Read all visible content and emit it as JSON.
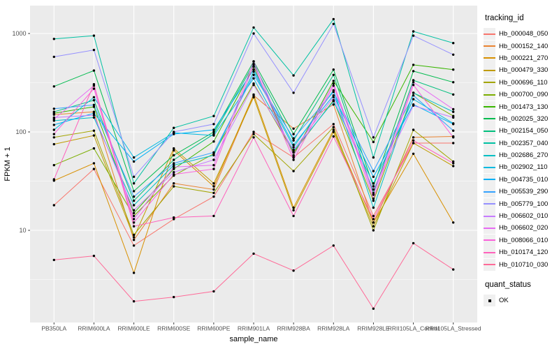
{
  "style": {
    "panel_bg": "#EBEBEB",
    "grid_color": "#FFFFFF",
    "point_color": "#000000",
    "axis_text_color": "#4D4D4D",
    "axis_title_color": "#000000",
    "tick_mark_color": "#333333",
    "legend_key_bg": "#F0F0F0"
  },
  "legend": {
    "title": "tracking_id"
  },
  "legend2": {
    "title": "quant_status",
    "items": [
      {
        "label": "OK",
        "marker": "black-square"
      }
    ]
  },
  "chart_data": {
    "type": "line",
    "title": "",
    "xlabel": "sample_name",
    "ylabel": "FPKM + 1",
    "y_scale": "log10",
    "y_ticks": [
      1000,
      100,
      10
    ],
    "y_minor_gridlines": [
      316.2,
      31.62,
      3.162
    ],
    "ylim": [
      1.16,
      1925
    ],
    "grid": "white major+minor horizontal, white vertical at each category, on gray panel",
    "legend_position": "right",
    "point_marker": "small black dot on every vertex",
    "categories": [
      "PB350LA",
      "RRIM600LA",
      "RRIM600LE",
      "RRIM600SE",
      "RRIM600PE",
      "RRIM901LA",
      "RRIM928BA",
      "RRIM928LA",
      "RRIM928LE",
      "RRII105LA_Control",
      "RRII105LA_Stressed"
    ],
    "series": [
      {
        "name": "Hb_000048_050",
        "color": "#F8766D",
        "values": [
          18,
          42,
          7,
          13,
          22,
          100,
          55,
          120,
          14,
          77,
          77
        ]
      },
      {
        "name": "Hb_000152_140",
        "color": "#EA8331",
        "values": [
          150,
          160,
          8,
          30,
          26,
          235,
          108,
          190,
          12,
          88,
          90
        ]
      },
      {
        "name": "Hb_000221_270",
        "color": "#D89000",
        "values": [
          32,
          48,
          3.7,
          65,
          28,
          240,
          17,
          105,
          12,
          60,
          12
        ]
      },
      {
        "name": "Hb_000479_330",
        "color": "#C09B00",
        "values": [
          75,
          92,
          8.5,
          68,
          30,
          225,
          16,
          100,
          11,
          77,
          45
        ]
      },
      {
        "name": "Hb_000696_110",
        "color": "#A3A500",
        "values": [
          88,
          103,
          9,
          28,
          24,
          95,
          40,
          112,
          10,
          105,
          50
        ]
      },
      {
        "name": "Hb_000700_090",
        "color": "#7CAE00",
        "values": [
          46,
          68,
          14,
          36,
          60,
          310,
          62,
          210,
          20,
          250,
          145
        ]
      },
      {
        "name": "Hb_001473_130",
        "color": "#39B600",
        "values": [
          155,
          180,
          15,
          42,
          80,
          460,
          58,
          330,
          79,
          480,
          430
        ]
      },
      {
        "name": "Hb_002025_320",
        "color": "#00BB4E",
        "values": [
          290,
          420,
          25,
          58,
          100,
          520,
          95,
          430,
          28,
          415,
          320
        ]
      },
      {
        "name": "Hb_002154_050",
        "color": "#00BF7D",
        "values": [
          160,
          210,
          20,
          52,
          95,
          490,
          82,
          380,
          24,
          335,
          240
        ]
      },
      {
        "name": "Hb_002357_040",
        "color": "#00C1A3",
        "values": [
          880,
          950,
          30,
          110,
          145,
          1150,
          375,
          1400,
          55,
          1050,
          800
        ]
      },
      {
        "name": "Hb_002686_270",
        "color": "#00BFC4",
        "values": [
          130,
          140,
          18,
          46,
          58,
          410,
          70,
          265,
          17,
          250,
          160
        ]
      },
      {
        "name": "Hb_002902_110",
        "color": "#00BAE0",
        "values": [
          105,
          225,
          55,
          98,
          92,
          350,
          64,
          205,
          30,
          215,
          122
        ]
      },
      {
        "name": "Hb_004735_010",
        "color": "#00B0F6",
        "values": [
          118,
          155,
          50,
          95,
          105,
          430,
          74,
          235,
          35,
          190,
          120
        ]
      },
      {
        "name": "Hb_005539_290",
        "color": "#35A2FF",
        "values": [
          172,
          188,
          22,
          48,
          62,
          380,
          86,
          255,
          40,
          235,
          103
        ]
      },
      {
        "name": "Hb_005779_100",
        "color": "#9590FF",
        "values": [
          580,
          680,
          35,
          100,
          120,
          1000,
          250,
          1250,
          88,
          950,
          610
        ]
      },
      {
        "name": "Hb_006602_010",
        "color": "#C77CFF",
        "values": [
          140,
          148,
          16,
          39,
          52,
          300,
          66,
          225,
          26,
          185,
          140
        ]
      },
      {
        "name": "Hb_006602_020",
        "color": "#E76BF3",
        "values": [
          135,
          295,
          13,
          44,
          46,
          520,
          57,
          310,
          23,
          320,
          170
        ]
      },
      {
        "name": "Hb_008066_010",
        "color": "#FA62DB",
        "values": [
          95,
          275,
          12,
          37,
          42,
          480,
          52,
          295,
          21,
          300,
          88
        ]
      },
      {
        "name": "Hb_010174_120",
        "color": "#FF62BC",
        "values": [
          33,
          305,
          11,
          13.5,
          14,
          88,
          14,
          90,
          13,
          82,
          48
        ]
      },
      {
        "name": "Hb_010710_030",
        "color": "#FF6A98",
        "values": [
          5,
          5.5,
          1.9,
          2.1,
          2.4,
          5.8,
          3.9,
          7,
          1.6,
          7.4,
          4
        ]
      }
    ]
  }
}
